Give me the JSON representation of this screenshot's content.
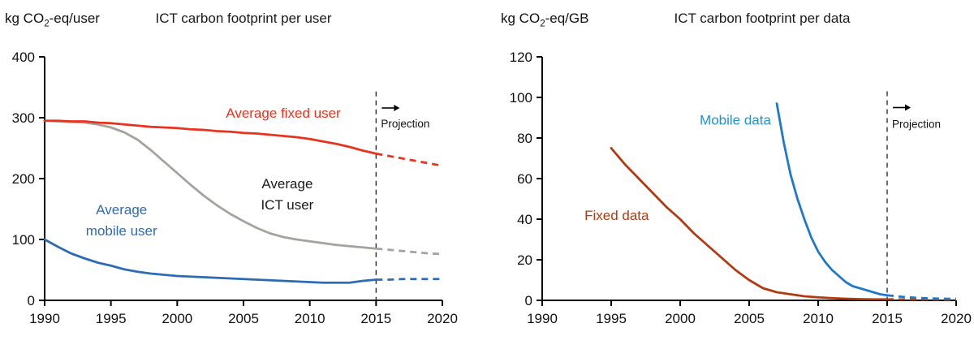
{
  "chart_data": [
    {
      "type": "line",
      "title": "ICT carbon footprint per user",
      "unit": {
        "prefix": "kg CO",
        "sub": "2",
        "suffix": "-eq/user"
      },
      "xlim": [
        1990,
        2020
      ],
      "ylim": [
        0,
        400
      ],
      "xticks": [
        1990,
        1995,
        2000,
        2005,
        2010,
        2015,
        2020
      ],
      "yticks": [
        0,
        100,
        200,
        300,
        400
      ],
      "grid": false,
      "projection": {
        "x": 2015,
        "y_top": 343,
        "arrow_y": 316,
        "label_y": 284,
        "label": "Projection"
      },
      "series": [
        {
          "name": "Average ICT user",
          "color": "#a6a29e",
          "width": 2.8,
          "solid": [
            [
              1990,
              295
            ],
            [
              1991,
              294
            ],
            [
              1992,
              293
            ],
            [
              1993,
              292
            ],
            [
              1994,
              289
            ],
            [
              1995,
              284
            ],
            [
              1996,
              276
            ],
            [
              1997,
              264
            ],
            [
              1998,
              247
            ],
            [
              1999,
              228
            ],
            [
              2000,
              209
            ],
            [
              2001,
              190
            ],
            [
              2002,
              172
            ],
            [
              2003,
              156
            ],
            [
              2004,
              142
            ],
            [
              2005,
              130
            ],
            [
              2006,
              119
            ],
            [
              2007,
              110
            ],
            [
              2008,
              104
            ],
            [
              2009,
              100
            ],
            [
              2010,
              97
            ],
            [
              2011,
              94
            ],
            [
              2012,
              91
            ],
            [
              2013,
              89
            ],
            [
              2014,
              87
            ],
            [
              2015,
              85
            ]
          ],
          "dashed": [
            [
              2015,
              85
            ],
            [
              2016,
              83
            ],
            [
              2017,
              81
            ],
            [
              2018,
              79
            ],
            [
              2019,
              77
            ],
            [
              2020,
              76
            ]
          ]
        },
        {
          "name": "Average fixed user",
          "color": "#e8331f",
          "width": 2.8,
          "solid": [
            [
              1990,
              295
            ],
            [
              1991,
              295
            ],
            [
              1992,
              294
            ],
            [
              1993,
              294
            ],
            [
              1994,
              292
            ],
            [
              1995,
              291
            ],
            [
              1996,
              289
            ],
            [
              1997,
              287
            ],
            [
              1998,
              285
            ],
            [
              1999,
              284
            ],
            [
              2000,
              283
            ],
            [
              2001,
              281
            ],
            [
              2002,
              280
            ],
            [
              2003,
              278
            ],
            [
              2004,
              277
            ],
            [
              2005,
              275
            ],
            [
              2006,
              274
            ],
            [
              2007,
              272
            ],
            [
              2008,
              270
            ],
            [
              2009,
              268
            ],
            [
              2010,
              265
            ],
            [
              2011,
              261
            ],
            [
              2012,
              257
            ],
            [
              2013,
              252
            ],
            [
              2014,
              246
            ],
            [
              2015,
              241
            ]
          ],
          "dashed": [
            [
              2015,
              241
            ],
            [
              2016,
              237
            ],
            [
              2017,
              233
            ],
            [
              2018,
              229
            ],
            [
              2019,
              225
            ],
            [
              2020,
              221
            ]
          ]
        },
        {
          "name": "Average mobile user",
          "color": "#2d6cb5",
          "width": 2.8,
          "solid": [
            [
              1990,
              100
            ],
            [
              1991,
              88
            ],
            [
              1992,
              77
            ],
            [
              1993,
              69
            ],
            [
              1994,
              62
            ],
            [
              1995,
              57
            ],
            [
              1996,
              51
            ],
            [
              1997,
              47
            ],
            [
              1998,
              44
            ],
            [
              1999,
              42
            ],
            [
              2000,
              40
            ],
            [
              2001,
              39
            ],
            [
              2002,
              38
            ],
            [
              2003,
              37
            ],
            [
              2004,
              36
            ],
            [
              2005,
              35
            ],
            [
              2006,
              34
            ],
            [
              2007,
              33
            ],
            [
              2008,
              32
            ],
            [
              2009,
              31
            ],
            [
              2010,
              30
            ],
            [
              2011,
              29
            ],
            [
              2012,
              29
            ],
            [
              2013,
              29
            ],
            [
              2014,
              32
            ],
            [
              2015,
              34
            ]
          ],
          "dashed": [
            [
              2015,
              34
            ],
            [
              2016,
              34
            ],
            [
              2017,
              35
            ],
            [
              2018,
              35
            ],
            [
              2019,
              35
            ],
            [
              2020,
              35
            ]
          ]
        }
      ],
      "annotations": [
        {
          "lines": [
            "Average fixed user"
          ],
          "x": 2008,
          "y": 308,
          "color": "#e8331f"
        },
        {
          "lines": [
            "Average",
            "ICT user"
          ],
          "x": 2008.3,
          "y": 175,
          "color": "#1a1a1a"
        },
        {
          "lines": [
            "Average",
            "mobile user"
          ],
          "x": 1995.8,
          "y": 132,
          "color": "#2d6cb5"
        }
      ]
    },
    {
      "type": "line",
      "title": "ICT carbon footprint per data",
      "unit": {
        "prefix": "kg CO",
        "sub": "2",
        "suffix": "-eq/GB"
      },
      "xlim": [
        1990,
        2020
      ],
      "ylim": [
        0,
        120
      ],
      "xticks": [
        1990,
        1995,
        2000,
        2005,
        2010,
        2015,
        2020
      ],
      "yticks": [
        0,
        20,
        40,
        60,
        80,
        100,
        120
      ],
      "grid": false,
      "projection": {
        "x": 2015,
        "y_top": 103,
        "arrow_y": 95,
        "label_y": 85,
        "label": "Projection"
      },
      "series": [
        {
          "name": "Fixed data",
          "color": "#b13a12",
          "width": 2.8,
          "solid": [
            [
              1995,
              75
            ],
            [
              1996,
              67
            ],
            [
              1997,
              60
            ],
            [
              1998,
              53
            ],
            [
              1999,
              46
            ],
            [
              2000,
              40
            ],
            [
              2001,
              33
            ],
            [
              2002,
              27
            ],
            [
              2003,
              21
            ],
            [
              2004,
              15
            ],
            [
              2005,
              10
            ],
            [
              2006,
              6
            ],
            [
              2007,
              4
            ],
            [
              2008,
              3
            ],
            [
              2009,
              2
            ],
            [
              2010,
              1.5
            ],
            [
              2011,
              1.1
            ],
            [
              2012,
              0.8
            ],
            [
              2013,
              0.6
            ],
            [
              2014,
              0.5
            ],
            [
              2015,
              0.5
            ]
          ],
          "dashed": [
            [
              2015,
              0.5
            ],
            [
              2017,
              0.4
            ],
            [
              2020,
              0.3
            ]
          ]
        },
        {
          "name": "Mobile data",
          "color": "#1f78c8",
          "width": 2.8,
          "solid": [
            [
              2007,
              97
            ],
            [
              2007.5,
              78
            ],
            [
              2008,
              62
            ],
            [
              2008.5,
              50
            ],
            [
              2009,
              40
            ],
            [
              2009.5,
              31
            ],
            [
              2010,
              24
            ],
            [
              2010.5,
              19
            ],
            [
              2011,
              15
            ],
            [
              2011.5,
              12
            ],
            [
              2012,
              9
            ],
            [
              2012.5,
              7
            ],
            [
              2013,
              6
            ],
            [
              2013.5,
              5
            ],
            [
              2014,
              4
            ],
            [
              2014.5,
              3
            ],
            [
              2015,
              2.5
            ]
          ],
          "dashed": [
            [
              2015,
              2.5
            ],
            [
              2016,
              1.8
            ],
            [
              2017,
              1.3
            ],
            [
              2018,
              1.0
            ],
            [
              2019,
              0.8
            ],
            [
              2020,
              0.7
            ]
          ]
        }
      ],
      "annotations": [
        {
          "lines": [
            "Mobile data"
          ],
          "x": 2004,
          "y": 89,
          "color": "#2391ce"
        },
        {
          "lines": [
            "Fixed data"
          ],
          "x": 1995.4,
          "y": 42,
          "color": "#b13a12"
        }
      ]
    }
  ]
}
